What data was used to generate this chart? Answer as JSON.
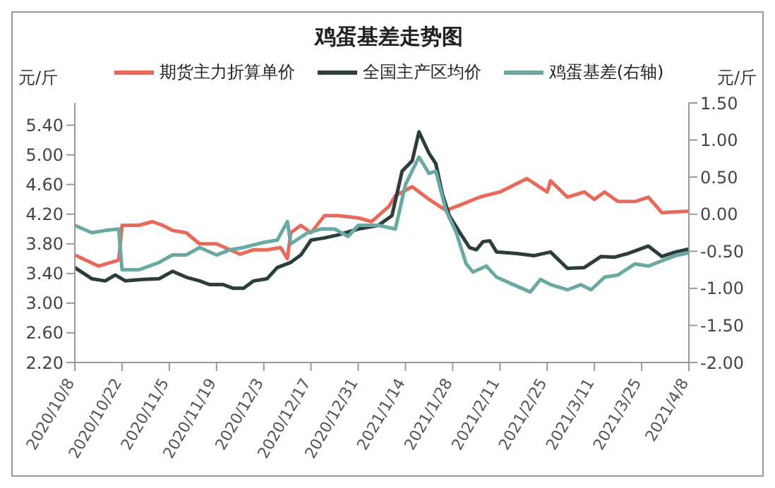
{
  "chart_data": {
    "type": "line",
    "title": "鸡蛋基差走势图",
    "ylabel": "元/斤",
    "y2label": "元/斤",
    "legend": "top",
    "grid": false,
    "marker": "none",
    "line_style": "solid",
    "xlim": [
      "2020-10-08",
      "2021-04-08"
    ],
    "xticks": [
      {
        "value": "2020-10-08",
        "label": "2020/10/8"
      },
      {
        "value": "2020-10-22",
        "label": "2020/10/22"
      },
      {
        "value": "2020-11-05",
        "label": "2020/11/5"
      },
      {
        "value": "2020-11-19",
        "label": "2020/11/19"
      },
      {
        "value": "2020-12-03",
        "label": "2020/12/3"
      },
      {
        "value": "2020-12-17",
        "label": "2020/12/17"
      },
      {
        "value": "2020-12-31",
        "label": "2020/12/31"
      },
      {
        "value": "2021-01-14",
        "label": "2021/1/14"
      },
      {
        "value": "2021-01-28",
        "label": "2021/1/28"
      },
      {
        "value": "2021-02-11",
        "label": "2021/2/11"
      },
      {
        "value": "2021-02-25",
        "label": "2021/2/25"
      },
      {
        "value": "2021-03-11",
        "label": "2021/3/11"
      },
      {
        "value": "2021-03-25",
        "label": "2021/3/25"
      },
      {
        "value": "2021-04-08",
        "label": "2021/4/8"
      }
    ],
    "ylim": [
      2.2,
      5.7
    ],
    "yticks": [
      {
        "value": 2.2,
        "label": "2.20"
      },
      {
        "value": 2.6,
        "label": "2.60"
      },
      {
        "value": 3.0,
        "label": "3.00"
      },
      {
        "value": 3.4,
        "label": "3.40"
      },
      {
        "value": 3.8,
        "label": "3.80"
      },
      {
        "value": 4.2,
        "label": "4.20"
      },
      {
        "value": 4.6,
        "label": "4.60"
      },
      {
        "value": 5.0,
        "label": "5.00"
      },
      {
        "value": 5.4,
        "label": "5.40"
      }
    ],
    "y2lim": [
      -2,
      1.5
    ],
    "y2ticks": [
      {
        "value": -2,
        "label": "-2.00"
      },
      {
        "value": -1.5,
        "label": "-1.50"
      },
      {
        "value": -1,
        "label": "-1.00"
      },
      {
        "value": -0.5,
        "label": "-0.50"
      },
      {
        "value": 0,
        "label": "0.00"
      },
      {
        "value": 0.5,
        "label": "0.50"
      },
      {
        "value": 1,
        "label": "1.00"
      },
      {
        "value": 1.5,
        "label": "1.50"
      }
    ],
    "series": [
      {
        "name": "期货主力折算单价",
        "color": "#e8695a",
        "x": [
          "2020-10-08",
          "2020-10-15",
          "2020-10-21",
          "2020-10-22",
          "2020-10-27",
          "2020-10-31",
          "2020-11-03",
          "2020-11-06",
          "2020-11-10",
          "2020-11-14",
          "2020-11-19",
          "2020-11-23",
          "2020-11-26",
          "2020-11-30",
          "2020-12-04",
          "2020-12-08",
          "2020-12-10",
          "2020-12-11",
          "2020-12-14",
          "2020-12-17",
          "2020-12-21",
          "2020-12-25",
          "2020-12-31",
          "2021-01-04",
          "2021-01-09",
          "2021-01-11",
          "2021-01-16",
          "2021-01-21",
          "2021-01-26",
          "2021-01-30",
          "2021-02-05",
          "2021-02-11",
          "2021-02-19",
          "2021-02-25",
          "2021-02-26",
          "2021-03-03",
          "2021-03-08",
          "2021-03-11",
          "2021-03-14",
          "2021-03-18",
          "2021-03-23",
          "2021-03-27",
          "2021-03-31",
          "2021-04-04",
          "2021-04-08"
        ],
        "values": [
          3.65,
          3.5,
          3.58,
          4.05,
          4.05,
          4.1,
          4.05,
          3.98,
          3.95,
          3.8,
          3.8,
          3.72,
          3.66,
          3.72,
          3.72,
          3.75,
          3.6,
          3.95,
          4.05,
          3.95,
          4.18,
          4.18,
          4.15,
          4.1,
          4.3,
          4.45,
          4.57,
          4.4,
          4.25,
          4.32,
          4.43,
          4.5,
          4.68,
          4.5,
          4.65,
          4.43,
          4.5,
          4.4,
          4.5,
          4.37,
          4.37,
          4.43,
          4.22,
          4.23,
          4.24
        ]
      },
      {
        "name": "全国主产区均价",
        "color": "#2b3d3d",
        "x": [
          "2020-10-08",
          "2020-10-13",
          "2020-10-17",
          "2020-10-20",
          "2020-10-23",
          "2020-10-28",
          "2020-11-02",
          "2020-11-06",
          "2020-11-10",
          "2020-11-14",
          "2020-11-17",
          "2020-11-21",
          "2020-11-24",
          "2020-11-27",
          "2020-11-30",
          "2020-12-04",
          "2020-12-07",
          "2020-12-11",
          "2020-12-14",
          "2020-12-17",
          "2020-12-21",
          "2020-12-25",
          "2020-12-31",
          "2021-01-06",
          "2021-01-10",
          "2021-01-13",
          "2021-01-16",
          "2021-01-18",
          "2021-01-21",
          "2021-01-23",
          "2021-01-25",
          "2021-01-27",
          "2021-01-30",
          "2021-02-02",
          "2021-02-04",
          "2021-02-06",
          "2021-02-08",
          "2021-02-10",
          "2021-02-16",
          "2021-02-21",
          "2021-02-26",
          "2021-03-03",
          "2021-03-08",
          "2021-03-13",
          "2021-03-17",
          "2021-03-21",
          "2021-03-27",
          "2021-03-31",
          "2021-04-04",
          "2021-04-08"
        ],
        "values": [
          3.48,
          3.33,
          3.3,
          3.38,
          3.3,
          3.32,
          3.33,
          3.43,
          3.35,
          3.3,
          3.25,
          3.25,
          3.2,
          3.2,
          3.3,
          3.33,
          3.48,
          3.55,
          3.65,
          3.85,
          3.88,
          3.92,
          4.0,
          4.05,
          4.18,
          4.78,
          4.92,
          5.31,
          5.02,
          4.88,
          4.46,
          4.18,
          3.96,
          3.75,
          3.72,
          3.83,
          3.84,
          3.69,
          3.67,
          3.64,
          3.69,
          3.47,
          3.48,
          3.63,
          3.62,
          3.67,
          3.77,
          3.63,
          3.69,
          3.73
        ]
      },
      {
        "name": "鸡蛋基差(右轴)",
        "color": "#6aa8a4",
        "axis": "y2",
        "x": [
          "2020-10-08",
          "2020-10-13",
          "2020-10-17",
          "2020-10-21",
          "2020-10-22",
          "2020-10-27",
          "2020-11-02",
          "2020-11-06",
          "2020-11-10",
          "2020-11-14",
          "2020-11-19",
          "2020-11-23",
          "2020-11-27",
          "2020-12-03",
          "2020-12-07",
          "2020-12-10",
          "2020-12-11",
          "2020-12-16",
          "2020-12-20",
          "2020-12-24",
          "2020-12-28",
          "2020-12-31",
          "2021-01-06",
          "2021-01-11",
          "2021-01-14",
          "2021-01-18",
          "2021-01-21",
          "2021-01-23",
          "2021-01-26",
          "2021-01-29",
          "2021-02-01",
          "2021-02-03",
          "2021-02-07",
          "2021-02-10",
          "2021-02-15",
          "2021-02-20",
          "2021-02-23",
          "2021-02-26",
          "2021-03-03",
          "2021-03-07",
          "2021-03-10",
          "2021-03-14",
          "2021-03-18",
          "2021-03-23",
          "2021-03-27",
          "2021-03-31",
          "2021-04-04",
          "2021-04-08"
        ],
        "values": [
          -0.15,
          -0.25,
          -0.22,
          -0.2,
          -0.75,
          -0.75,
          -0.65,
          -0.55,
          -0.55,
          -0.45,
          -0.55,
          -0.48,
          -0.45,
          -0.38,
          -0.35,
          -0.1,
          -0.4,
          -0.25,
          -0.2,
          -0.2,
          -0.3,
          -0.15,
          -0.15,
          -0.2,
          0.4,
          0.77,
          0.55,
          0.58,
          0.05,
          -0.24,
          -0.67,
          -0.78,
          -0.7,
          -0.85,
          -0.95,
          -1.05,
          -0.88,
          -0.95,
          -1.02,
          -0.95,
          -1.02,
          -0.85,
          -0.82,
          -0.67,
          -0.7,
          -0.63,
          -0.56,
          -0.52
        ]
      }
    ]
  }
}
